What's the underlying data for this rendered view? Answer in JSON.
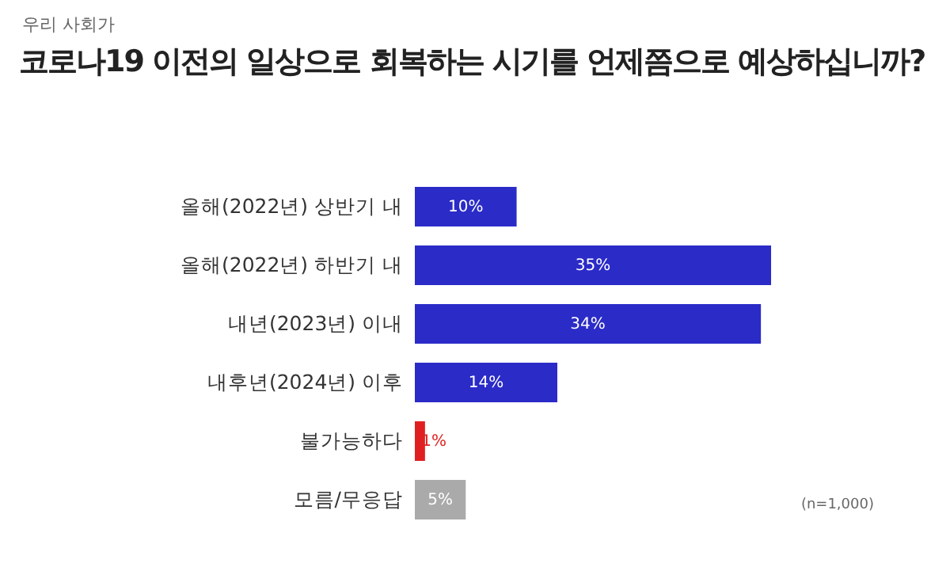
{
  "chart_data": {
    "type": "bar",
    "orientation": "horizontal",
    "subtitle": "우리 사회가",
    "title": "코로나19 이전의 일상으로 회복하는 시기를 언제쯤으로 예상하십니까?",
    "categories": [
      "올해(2022년) 상반기 내",
      "올해(2022년) 하반기 내",
      "내년(2023년) 이내",
      "내후년(2024년) 이후",
      "불가능하다",
      "모름/무응답"
    ],
    "values": [
      10,
      35,
      34,
      14,
      1,
      5
    ],
    "colors": [
      "#2b2bc8",
      "#2b2bc8",
      "#2b2bc8",
      "#2b2bc8",
      "#e02020",
      "#aaaaaa"
    ],
    "value_labels": [
      "10%",
      "35%",
      "34%",
      "14%",
      "1%",
      "5%"
    ],
    "annotations": [
      "(n=1,000)"
    ]
  }
}
